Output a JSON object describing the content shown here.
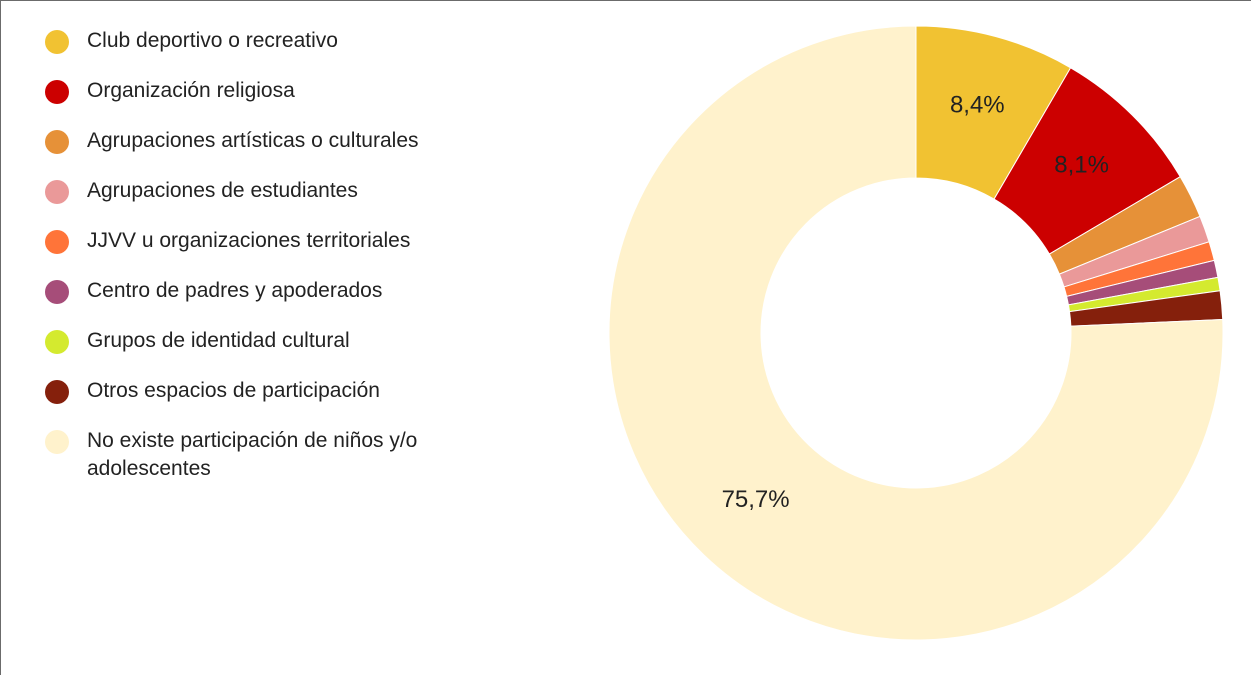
{
  "chart_data": {
    "type": "pie",
    "title": "",
    "legend_position": "left",
    "donut": true,
    "slices": [
      {
        "label": "Club deportivo o recreativo",
        "value": 8.4,
        "display": "8,4%",
        "color": "#f1c232"
      },
      {
        "label": "Organización religiosa",
        "value": 8.1,
        "display": "8,1%",
        "color": "#cc0000"
      },
      {
        "label": "Agrupaciones artísticas o culturales",
        "value": 2.3,
        "display": "",
        "color": "#e69138"
      },
      {
        "label": "Agrupaciones de estudiantes",
        "value": 1.4,
        "display": "",
        "color": "#ea9999"
      },
      {
        "label": "JJVV u organizaciones territoriales",
        "value": 1.0,
        "display": "",
        "color": "#ff7439"
      },
      {
        "label": "Centro de padres y apoderados",
        "value": 0.9,
        "display": "",
        "color": "#a64d79"
      },
      {
        "label": "Grupos de identidad cultural",
        "value": 0.7,
        "display": "",
        "color": "#d4ea2f"
      },
      {
        "label": "Otros espacios de participación",
        "value": 1.5,
        "display": "",
        "color": "#85200c"
      },
      {
        "label": "No existe participación de niños y/o adolescentes",
        "value": 75.7,
        "display": "75,7%",
        "color": "#fff2cc"
      }
    ]
  }
}
